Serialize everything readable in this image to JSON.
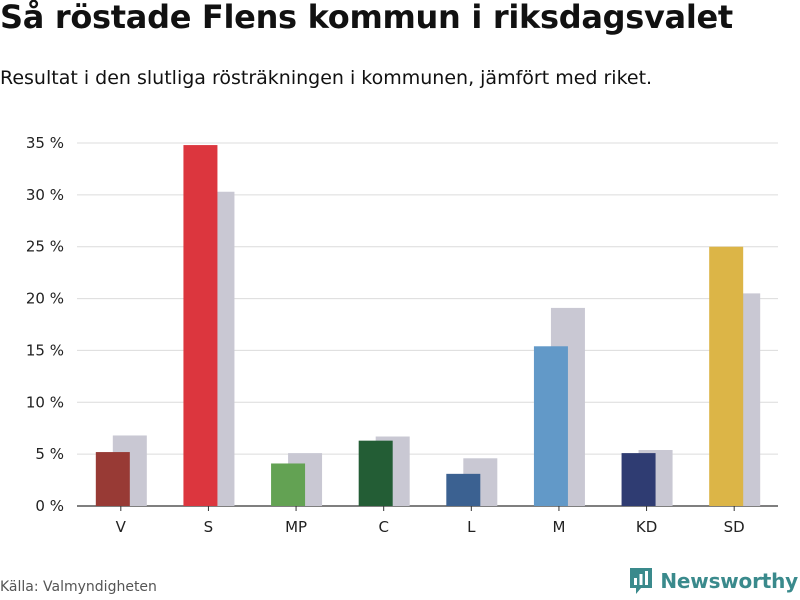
{
  "header": {
    "title": "Så röstade Flens kommun i riksdagsvalet",
    "subtitle": "Resultat i den slutliga rösträkningen i kommunen, jämfört med riket."
  },
  "footer": {
    "source": "Källa: Valmyndigheten",
    "brand": "Newsworthy",
    "brand_icon": "bar-chart-logo-icon",
    "brand_color": "#3a8a8c"
  },
  "chart_data": {
    "type": "bar",
    "categories": [
      "V",
      "S",
      "MP",
      "C",
      "L",
      "M",
      "KD",
      "SD"
    ],
    "series": [
      {
        "values": [
          5.2,
          34.8,
          4.1,
          6.3,
          3.1,
          15.4,
          5.1,
          25.0
        ],
        "colors": [
          "#983a35",
          "#dc363e",
          "#63a253",
          "#235d35",
          "#3b6191",
          "#6299c8",
          "#2f3c72",
          "#dcb547"
        ]
      },
      {
        "values": [
          6.8,
          30.3,
          5.1,
          6.7,
          4.6,
          19.1,
          5.4,
          20.5
        ],
        "color": "#c9c8d3"
      }
    ],
    "yticks": [
      0,
      5,
      10,
      15,
      20,
      25,
      30,
      35
    ],
    "ytick_labels": [
      "0 %",
      "5 %",
      "10 %",
      "15 %",
      "20 %",
      "25 %",
      "30 %",
      "35 %"
    ],
    "ylim": [
      0,
      35
    ],
    "grid": true,
    "xlabel": "",
    "ylabel": ""
  }
}
